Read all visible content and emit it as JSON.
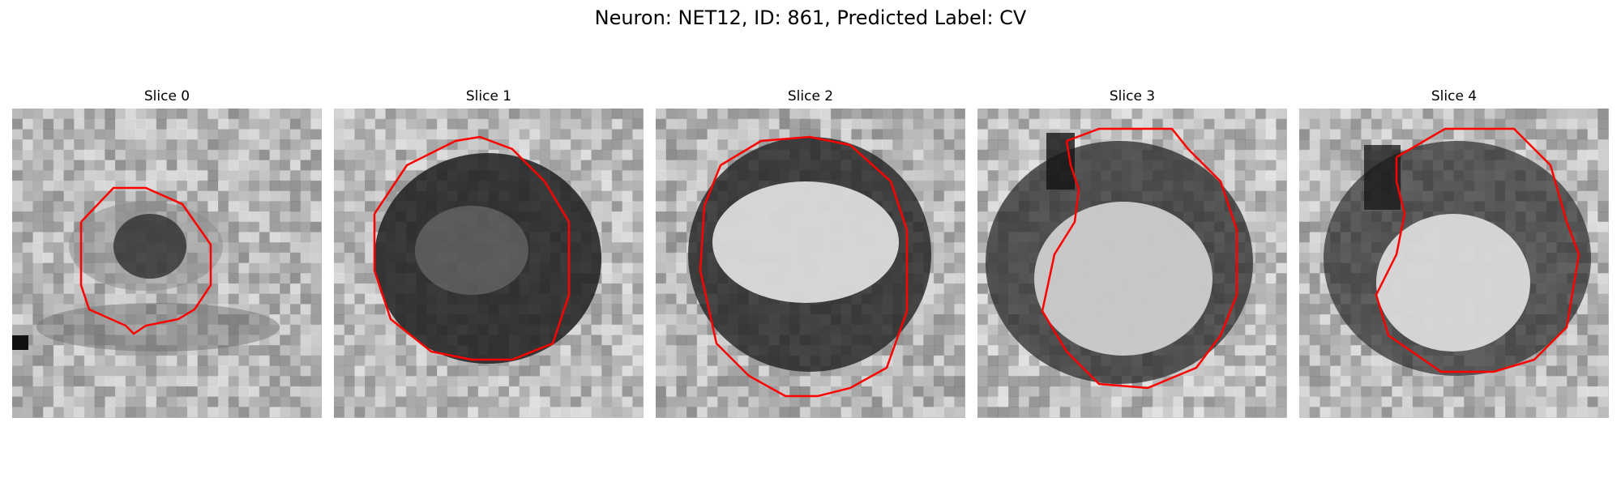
{
  "figure": {
    "title": "Neuron: NET12, ID: 861, Predicted Label: CV"
  },
  "panels": [
    {
      "label": "Slice 0"
    },
    {
      "label": "Slice 1"
    },
    {
      "label": "Slice 2"
    },
    {
      "label": "Slice 3"
    },
    {
      "label": "Slice 4"
    }
  ],
  "colors": {
    "contour": "#ff0000",
    "colormap": "grayscale"
  }
}
